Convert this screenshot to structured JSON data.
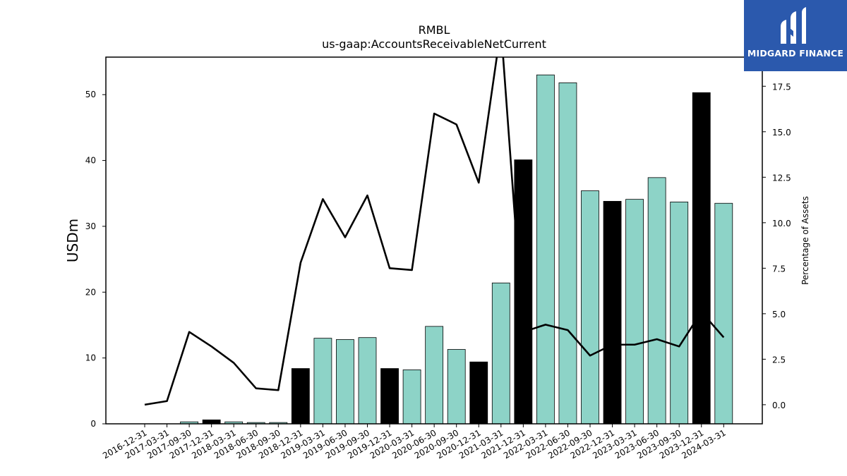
{
  "chart_data": {
    "type": "bar",
    "title": "RMBL",
    "subtitle": "us-gaap:AccountsReceivableNetCurrent",
    "ylabel": "USDm",
    "y2label": "Percentage of Assets",
    "categories": [
      "2016-12-31",
      "2017-03-31",
      "2017-09-30",
      "2017-12-31",
      "2018-03-31",
      "2018-06-30",
      "2018-09-30",
      "2018-12-31",
      "2019-03-31",
      "2019-06-30",
      "2019-09-30",
      "2019-12-31",
      "2020-03-31",
      "2020-06-30",
      "2020-09-30",
      "2020-12-31",
      "2021-03-31",
      "2021-12-31",
      "2022-03-31",
      "2022-06-30",
      "2022-09-30",
      "2022-12-31",
      "2023-03-31",
      "2023-06-30",
      "2023-09-30",
      "2023-12-31",
      "2024-03-31"
    ],
    "series": [
      {
        "type": "bar",
        "values": [
          0,
          0,
          0.3,
          0.6,
          0.3,
          0.2,
          0.2,
          8.4,
          13.0,
          12.8,
          13.1,
          8.4,
          8.2,
          14.8,
          11.3,
          9.4,
          21.4,
          40.1,
          53.0,
          51.8,
          35.4,
          33.8,
          34.1,
          37.4,
          33.7,
          50.3,
          33.5
        ],
        "colors": [
          "#8dd3c7",
          "#8dd3c7",
          "#8dd3c7",
          "#000000",
          "#8dd3c7",
          "#8dd3c7",
          "#8dd3c7",
          "#000000",
          "#8dd3c7",
          "#8dd3c7",
          "#8dd3c7",
          "#000000",
          "#8dd3c7",
          "#8dd3c7",
          "#8dd3c7",
          "#000000",
          "#8dd3c7",
          "#000000",
          "#8dd3c7",
          "#8dd3c7",
          "#8dd3c7",
          "#000000",
          "#8dd3c7",
          "#8dd3c7",
          "#8dd3c7",
          "#000000",
          "#8dd3c7"
        ]
      },
      {
        "type": "line",
        "axis": "right",
        "values": [
          0.0,
          0.2,
          4.0,
          3.2,
          2.3,
          0.9,
          0.8,
          7.8,
          11.3,
          9.2,
          11.5,
          7.5,
          7.4,
          16.0,
          15.4,
          12.2,
          20.7,
          4.0,
          4.4,
          4.1,
          2.7,
          3.3,
          3.3,
          3.6,
          3.2,
          5.1,
          3.7
        ]
      }
    ],
    "ylim": [
      0,
      55.7
    ],
    "yticks": [
      0,
      10,
      20,
      30,
      40,
      50
    ],
    "y2lim": [
      -1.05,
      19.1
    ],
    "y2ticks": [
      "0.0",
      "2.5",
      "5.0",
      "7.5",
      "10.0",
      "12.5",
      "15.0",
      "17.5"
    ],
    "grid": false,
    "colors": {
      "bar_default": "#8dd3c7",
      "bar_highlight": "#000000",
      "line": "#000000"
    }
  },
  "logo": {
    "text": "MIDGARD FINANCE",
    "background": "#2b59ad"
  }
}
